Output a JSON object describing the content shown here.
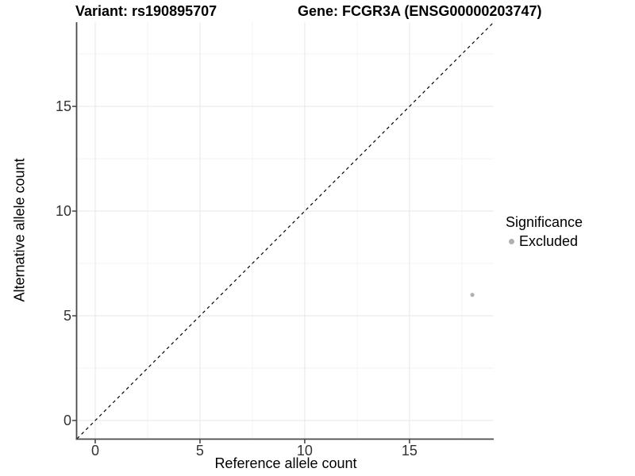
{
  "titles": {
    "variant": "Variant: rs190895707",
    "gene": "Gene: FCGR3A (ENSG00000203747)"
  },
  "legend": {
    "title": "Significance",
    "items": [
      {
        "label": "Excluded",
        "color": "#b0b0b0"
      }
    ]
  },
  "chart_data": {
    "type": "scatter",
    "title": "Variant: rs190895707 | Gene: FCGR3A (ENSG00000203747)",
    "xlabel": "Reference allele count",
    "ylabel": "Alternative allele count",
    "x_ticks": [
      0,
      5,
      10,
      15
    ],
    "y_ticks": [
      0,
      5,
      10,
      15
    ],
    "x_minor_ticks": [
      2.5,
      7.5,
      12.5,
      17.5
    ],
    "y_minor_ticks": [
      2.5,
      7.5,
      12.5,
      17.5
    ],
    "xlim": [
      -0.87,
      19.02
    ],
    "ylim": [
      -0.87,
      19.02
    ],
    "grid": "major+minor",
    "legend_position": "right",
    "series": [
      {
        "name": "Excluded",
        "color": "#b0b0b0",
        "points": [
          {
            "x": 18,
            "y": 6
          }
        ]
      }
    ],
    "reference_line": {
      "type": "identity y=x",
      "style": "dashed",
      "color": "#000000"
    }
  },
  "colors": {
    "axis_line": "#4a4a4a",
    "tick_mark": "#4a4a4a",
    "tick_text": "#333333",
    "grid_major": "#e7e7e7",
    "grid_minor": "#f2f2f2",
    "point": "#b0b0b0",
    "background": "#ffffff"
  }
}
